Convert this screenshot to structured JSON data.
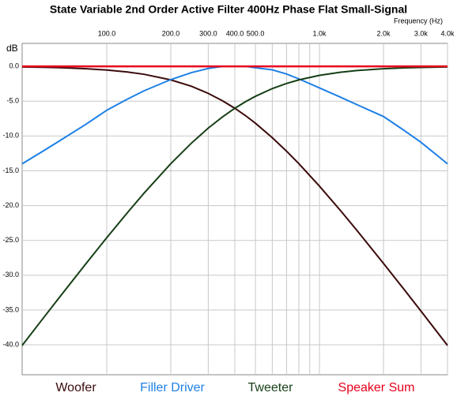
{
  "chart_data": {
    "type": "line",
    "title": "State Variable 2nd Order Active Filter 400Hz Phase Flat Small-Signal",
    "x_label": "Frequency  (Hz)",
    "y_label": "dB",
    "x_scale": "log",
    "grid": true,
    "xlim": [
      40,
      4000
    ],
    "ylim": [
      -44.3,
      3.3
    ],
    "xticks": [
      {
        "value": 100,
        "label": "100.0"
      },
      {
        "value": 200,
        "label": "200.0"
      },
      {
        "value": 300,
        "label": "300.0"
      },
      {
        "value": 400,
        "label": "400.0"
      },
      {
        "value": 500,
        "label": "500.0"
      },
      {
        "value": 1000,
        "label": "1.0k"
      },
      {
        "value": 2000,
        "label": "2.0k"
      },
      {
        "value": 3000,
        "label": "3.0k"
      },
      {
        "value": 4000,
        "label": "4.0k"
      }
    ],
    "xminorticks": [
      600,
      700,
      800,
      900
    ],
    "yticks": [
      {
        "value": 0,
        "label": "0.0"
      },
      {
        "value": -5,
        "label": "-5.0"
      },
      {
        "value": -10,
        "label": "-10.0"
      },
      {
        "value": -15,
        "label": "-15.0"
      },
      {
        "value": -20,
        "label": "-20.0"
      },
      {
        "value": -25,
        "label": "-25.0"
      },
      {
        "value": -30,
        "label": "-30.0"
      },
      {
        "value": -35,
        "label": "-35.0"
      },
      {
        "value": -40,
        "label": "-40.0"
      }
    ],
    "x": [
      40,
      50,
      60,
      80,
      100,
      125,
      150,
      200,
      250,
      300,
      350,
      400,
      450,
      500,
      600,
      700,
      800,
      1000,
      1250,
      1500,
      2000,
      2500,
      3000,
      4000
    ],
    "series": [
      {
        "name": "Woofer",
        "color": "#3b0a0c",
        "values": [
          -0.09,
          -0.13,
          -0.19,
          -0.34,
          -0.53,
          -0.81,
          -1.14,
          -1.94,
          -2.86,
          -3.88,
          -4.94,
          -6.02,
          -7.1,
          -8.17,
          -10.24,
          -12.18,
          -13.98,
          -17.21,
          -20.64,
          -23.56,
          -28.3,
          -32.05,
          -35.15,
          -40.09
        ]
      },
      {
        "name": "Filler Driver",
        "color": "#1e80e6",
        "values": [
          -14.0,
          -12.2,
          -10.7,
          -8.3,
          -6.3,
          -4.7,
          -3.5,
          -1.9,
          -0.9,
          -0.3,
          0,
          0,
          0,
          -0.2,
          -0.5,
          -1.1,
          -1.8,
          -3.1,
          -4.4,
          -5.5,
          -7.2,
          -9.2,
          -10.9,
          -14.0
        ]
      },
      {
        "name": "Tweeter",
        "color": "#163f16",
        "values": [
          -40.09,
          -36.26,
          -33.15,
          -28.3,
          -24.61,
          -21.02,
          -18.18,
          -13.98,
          -11.03,
          -8.87,
          -7.26,
          -6.02,
          -5.06,
          -4.3,
          -3.19,
          -2.46,
          -1.94,
          -1.29,
          -0.85,
          -0.59,
          -0.34,
          -0.22,
          -0.15,
          -0.09
        ]
      },
      {
        "name": "Speaker Sum",
        "color": "#e8001c",
        "values": [
          0,
          0,
          0,
          0,
          0,
          0,
          0,
          0,
          0,
          0,
          0,
          0,
          0,
          0,
          0,
          0,
          0,
          0,
          0,
          0,
          0,
          0,
          0,
          0
        ]
      }
    ]
  }
}
